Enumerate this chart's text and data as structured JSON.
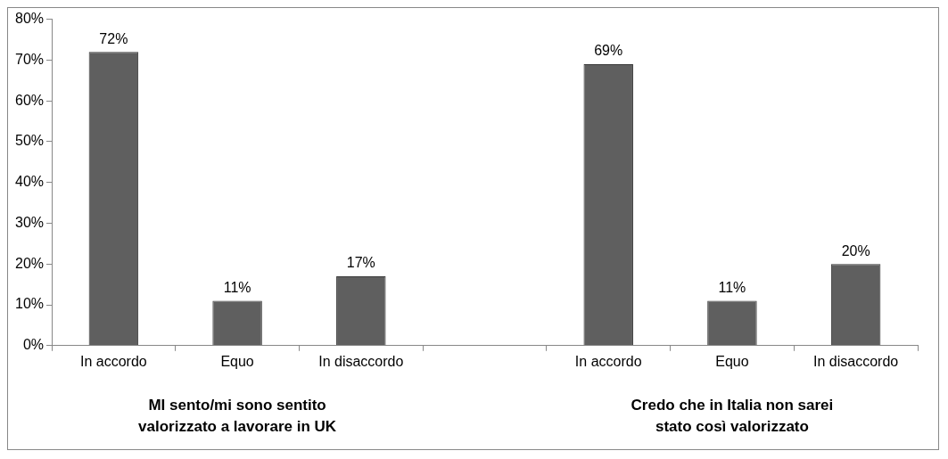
{
  "chart_data": {
    "type": "bar",
    "categories": [
      "In accordo",
      "Equo",
      "In disaccordo",
      null,
      "In accordo",
      "Equo",
      "In disaccordo"
    ],
    "values": [
      72,
      11,
      17,
      null,
      69,
      11,
      20
    ],
    "value_labels": [
      "72%",
      "11%",
      "17%",
      null,
      "69%",
      "11%",
      "20%"
    ],
    "color": "#5f5f5f",
    "ylim": [
      0,
      80
    ],
    "yticks": [
      {
        "value": 0,
        "label": "0%"
      },
      {
        "value": 10,
        "label": "10%"
      },
      {
        "value": 20,
        "label": "20%"
      },
      {
        "value": 30,
        "label": "30%"
      },
      {
        "value": 40,
        "label": "40%"
      },
      {
        "value": 50,
        "label": "50%"
      },
      {
        "value": 60,
        "label": "60%"
      },
      {
        "value": 70,
        "label": "70%"
      },
      {
        "value": 80,
        "label": "80%"
      }
    ],
    "grid": false,
    "legend": false,
    "annotations": [
      "MI sento/mi sono sentito\nvalorizzato a lavorare in UK",
      "Credo che in Italia non sarei\nstato così valorizzato"
    ]
  }
}
